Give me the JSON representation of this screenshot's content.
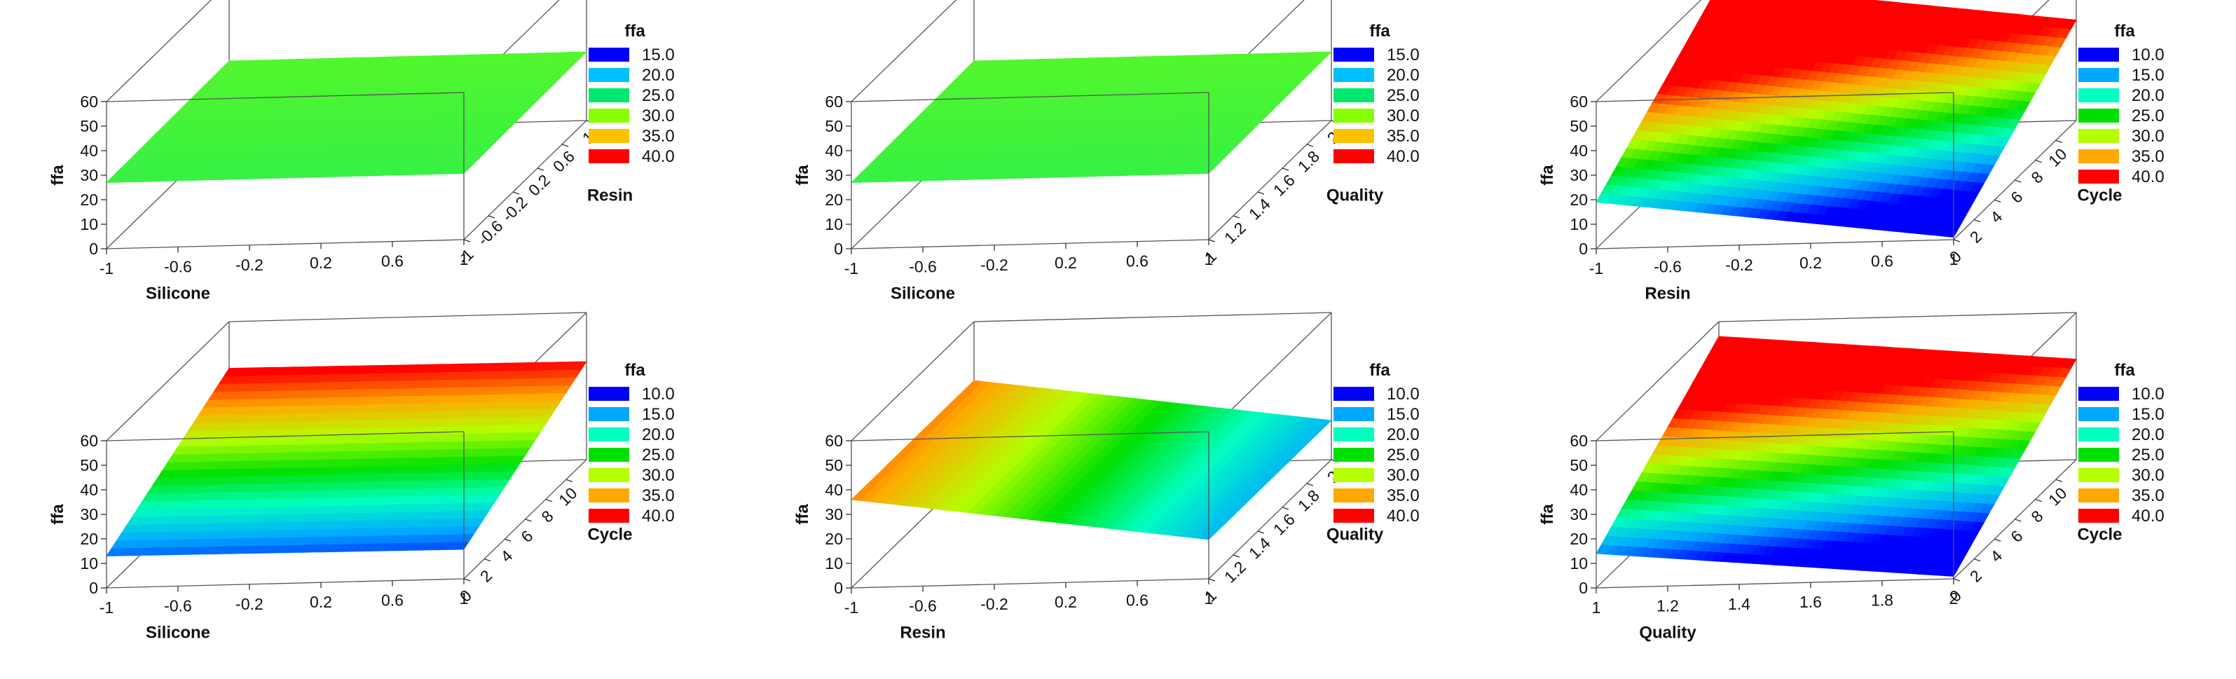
{
  "colormap": {
    "7": [
      "#0000ff",
      "#00a8ff",
      "#00ffc0",
      "#00e000",
      "#b4ff00",
      "#ffa800",
      "#ff0000"
    ],
    "6": [
      "#0000ff",
      "#00bfff",
      "#00e870",
      "#88ff00",
      "#ffc000",
      "#ff0000"
    ]
  },
  "chart_data": [
    {
      "type": "surface3d",
      "xlabel": "Silicone",
      "ylabel": "Resin",
      "zlabel": "ffa",
      "xlim": [
        -1,
        1
      ],
      "ylim": [
        -1,
        1
      ],
      "zlim": [
        0,
        60
      ],
      "x_ticks": [
        "-1",
        "-0.6",
        "-0.2",
        "0.2",
        "0.6",
        "1"
      ],
      "y_ticks": [
        "-1",
        "-0.6",
        "-0.2",
        "0.2",
        "0.6",
        "1"
      ],
      "z_ticks": [
        "0",
        "10",
        "20",
        "30",
        "40",
        "50",
        "60"
      ],
      "surface_corners": {
        "x0y0": 27,
        "x1y0": 27,
        "x0y1": 28,
        "x1y1": 28
      },
      "legend": {
        "title": "ffa",
        "entries": [
          "15.0",
          "20.0",
          "25.0",
          "30.0",
          "35.0",
          "40.0"
        ]
      }
    },
    {
      "type": "surface3d",
      "xlabel": "Silicone",
      "ylabel": "Quality",
      "zlabel": "ffa",
      "xlim": [
        -1,
        1
      ],
      "ylim": [
        1,
        2
      ],
      "zlim": [
        0,
        60
      ],
      "x_ticks": [
        "-1",
        "-0.6",
        "-0.2",
        "0.2",
        "0.6",
        "1"
      ],
      "y_ticks": [
        "1",
        "1.2",
        "1.4",
        "1.6",
        "1.8",
        "2"
      ],
      "z_ticks": [
        "0",
        "10",
        "20",
        "30",
        "40",
        "50",
        "60"
      ],
      "surface_corners": {
        "x0y0": 27,
        "x1y0": 27,
        "x0y1": 28,
        "x1y1": 28
      },
      "legend": {
        "title": "ffa",
        "entries": [
          "15.0",
          "20.0",
          "25.0",
          "30.0",
          "35.0",
          "40.0"
        ]
      }
    },
    {
      "type": "surface3d",
      "xlabel": "Resin",
      "ylabel": "Cycle",
      "zlabel": "ffa",
      "xlim": [
        -1,
        1
      ],
      "ylim": [
        0,
        12
      ],
      "zlim": [
        0,
        60
      ],
      "x_ticks": [
        "-1",
        "-0.6",
        "-0.2",
        "0.2",
        "0.6",
        "1"
      ],
      "y_ticks": [
        "0",
        "2",
        "4",
        "6",
        "8",
        "10"
      ],
      "z_ticks": [
        "0",
        "10",
        "20",
        "30",
        "40",
        "50",
        "60"
      ],
      "surface_corners": {
        "x0y0": 19,
        "x1y0": 1,
        "x0y1": 59,
        "x1y1": 41
      },
      "legend": {
        "title": "ffa",
        "entries": [
          "10.0",
          "15.0",
          "20.0",
          "25.0",
          "30.0",
          "35.0",
          "40.0"
        ]
      }
    },
    {
      "type": "surface3d",
      "xlabel": "Silicone",
      "ylabel": "Cycle",
      "zlabel": "ffa",
      "xlim": [
        -1,
        1
      ],
      "ylim": [
        0,
        12
      ],
      "zlim": [
        0,
        60
      ],
      "x_ticks": [
        "-1",
        "-0.6",
        "-0.2",
        "0.2",
        "0.6",
        "1"
      ],
      "y_ticks": [
        "0",
        "2",
        "4",
        "6",
        "8",
        "10"
      ],
      "z_ticks": [
        "0",
        "10",
        "20",
        "30",
        "40",
        "50",
        "60"
      ],
      "surface_corners": {
        "x0y0": 13,
        "x1y0": 12,
        "x0y1": 41,
        "x1y1": 40
      },
      "legend": {
        "title": "ffa",
        "entries": [
          "10.0",
          "15.0",
          "20.0",
          "25.0",
          "30.0",
          "35.0",
          "40.0"
        ]
      }
    },
    {
      "type": "surface3d",
      "xlabel": "Resin",
      "ylabel": "Quality",
      "zlabel": "ffa",
      "xlim": [
        -1,
        1
      ],
      "ylim": [
        1,
        2
      ],
      "zlim": [
        0,
        60
      ],
      "x_ticks": [
        "-1",
        "-0.6",
        "-0.2",
        "0.2",
        "0.6",
        "1"
      ],
      "y_ticks": [
        "1",
        "1.2",
        "1.4",
        "1.6",
        "1.8",
        "2"
      ],
      "z_ticks": [
        "0",
        "10",
        "20",
        "30",
        "40",
        "50",
        "60"
      ],
      "surface_corners": {
        "x0y0": 36,
        "x1y0": 16,
        "x0y1": 36,
        "x1y1": 16
      },
      "legend": {
        "title": "ffa",
        "entries": [
          "10.0",
          "15.0",
          "20.0",
          "25.0",
          "30.0",
          "35.0",
          "40.0"
        ]
      }
    },
    {
      "type": "surface3d",
      "xlabel": "Quality",
      "ylabel": "Cycle",
      "zlabel": "ffa",
      "xlim": [
        1,
        2
      ],
      "ylim": [
        0,
        12
      ],
      "zlim": [
        0,
        60
      ],
      "x_ticks": [
        "1",
        "1.2",
        "1.4",
        "1.6",
        "1.8",
        "2"
      ],
      "y_ticks": [
        "0",
        "2",
        "4",
        "6",
        "8",
        "10"
      ],
      "z_ticks": [
        "0",
        "10",
        "20",
        "30",
        "40",
        "50",
        "60"
      ],
      "surface_corners": {
        "x0y0": 14,
        "x1y0": 1,
        "x0y1": 54,
        "x1y1": 41
      },
      "legend": {
        "title": "ffa",
        "entries": [
          "10.0",
          "15.0",
          "20.0",
          "25.0",
          "30.0",
          "35.0",
          "40.0"
        ]
      }
    }
  ]
}
